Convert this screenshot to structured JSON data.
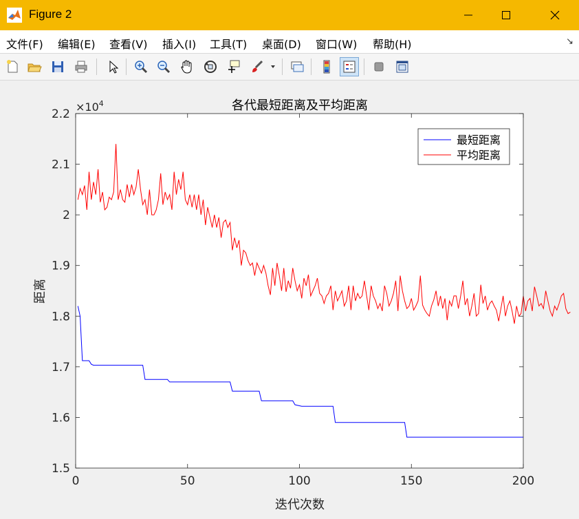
{
  "window": {
    "title": "Figure 2",
    "colors": {
      "titlebar": "#f5b800"
    }
  },
  "window_controls": {
    "minimize": "minimize-icon",
    "maximize": "maximize-icon",
    "close": "close-icon"
  },
  "menubar": {
    "items": [
      "文件(F)",
      "编辑(E)",
      "查看(V)",
      "插入(I)",
      "工具(T)",
      "桌面(D)",
      "窗口(W)",
      "帮助(H)"
    ],
    "dock_arrow": "↘"
  },
  "toolbar": {
    "buttons": [
      "new-figure-icon",
      "open-file-icon",
      "save-icon",
      "print-icon",
      "select-arrow-icon",
      "zoom-in-icon",
      "zoom-out-icon",
      "pan-hand-icon",
      "rotate-3d-icon",
      "data-cursor-icon",
      "brush-icon",
      "brush-dropdown-icon",
      "link-plot-icon",
      "insert-colorbar-icon",
      "insert-legend-icon",
      "hide-plot-tools-icon",
      "show-plot-tools-icon"
    ]
  },
  "chart_data": {
    "type": "line",
    "title": "各代最短距离及平均距离",
    "xlabel": "迭代次数",
    "ylabel": "距离",
    "exponent_label": "×10",
    "exponent_power": "4",
    "xlim": [
      0,
      200
    ],
    "ylim": [
      1.5,
      2.2
    ],
    "xticks": [
      0,
      50,
      100,
      150,
      200
    ],
    "xtick_labels": [
      "0",
      "50",
      "100",
      "150",
      "200"
    ],
    "yticks": [
      1.5,
      1.6,
      1.7,
      1.8,
      1.9,
      2.0,
      2.1,
      2.2
    ],
    "ytick_labels": [
      "1.5",
      "1.6",
      "1.7",
      "1.8",
      "1.9",
      "2",
      "2.1",
      "2.2"
    ],
    "grid": false,
    "legend": "top-right",
    "series": [
      {
        "name": "最短距离",
        "color": "#0000ff",
        "step_points": [
          [
            1,
            1.82
          ],
          [
            2,
            1.8
          ],
          [
            3,
            1.712
          ],
          [
            6,
            1.712
          ],
          [
            7,
            1.705
          ],
          [
            8,
            1.703
          ],
          [
            30,
            1.703
          ],
          [
            31,
            1.675
          ],
          [
            41,
            1.675
          ],
          [
            42,
            1.67
          ],
          [
            69,
            1.67
          ],
          [
            70,
            1.652
          ],
          [
            82,
            1.652
          ],
          [
            83,
            1.633
          ],
          [
            97,
            1.633
          ],
          [
            98,
            1.625
          ],
          [
            101,
            1.622
          ],
          [
            115,
            1.622
          ],
          [
            116,
            1.59
          ],
          [
            147,
            1.59
          ],
          [
            148,
            1.561
          ],
          [
            200,
            1.561
          ]
        ]
      },
      {
        "name": "平均距离",
        "color": "#ff0000",
        "values": [
          2.03,
          2.052,
          2.04,
          2.058,
          2.01,
          2.085,
          2.03,
          2.065,
          2.04,
          2.09,
          2.025,
          2.045,
          2.01,
          2.015,
          2.035,
          2.03,
          2.045,
          2.14,
          2.03,
          2.05,
          2.03,
          2.025,
          2.06,
          2.035,
          2.06,
          2.04,
          2.055,
          2.09,
          2.05,
          2.02,
          2.03,
          2.0,
          2.05,
          2.0,
          2.0,
          2.01,
          2.03,
          2.082,
          2.02,
          2.045,
          2.03,
          2.04,
          2.01,
          2.085,
          2.04,
          2.07,
          2.05,
          2.085,
          2.03,
          2.02,
          2.04,
          2.015,
          2.04,
          2.01,
          2.04,
          2.0,
          2.03,
          1.98,
          2.015,
          1.995,
          1.975,
          2.0,
          1.975,
          1.995,
          1.955,
          1.985,
          1.99,
          1.975,
          1.985,
          1.93,
          1.955,
          1.935,
          1.95,
          1.9,
          1.93,
          1.925,
          1.91,
          1.9,
          1.905,
          1.88,
          1.905,
          1.895,
          1.885,
          1.9,
          1.885,
          1.86,
          1.842,
          1.895,
          1.86,
          1.905,
          1.88,
          1.85,
          1.895,
          1.848,
          1.87,
          1.855,
          1.895,
          1.87,
          1.85,
          1.862,
          1.835,
          1.875,
          1.86,
          1.882,
          1.84,
          1.85,
          1.86,
          1.875,
          1.845,
          1.84,
          1.825,
          1.84,
          1.845,
          1.86,
          1.812,
          1.85,
          1.83,
          1.84,
          1.85,
          1.82,
          1.83,
          1.86,
          1.812,
          1.86,
          1.83,
          1.845,
          1.835,
          1.84,
          1.87,
          1.84,
          1.812,
          1.86,
          1.84,
          1.83,
          1.815,
          1.825,
          1.81,
          1.86,
          1.845,
          1.82,
          1.83,
          1.845,
          1.87,
          1.81,
          1.88,
          1.85,
          1.83,
          1.815,
          1.82,
          1.835,
          1.812,
          1.82,
          1.83,
          1.88,
          1.822,
          1.812,
          1.805,
          1.8,
          1.82,
          1.832,
          1.85,
          1.82,
          1.84,
          1.815,
          1.835,
          1.792,
          1.83,
          1.82,
          1.84,
          1.84,
          1.815,
          1.84,
          1.87,
          1.822,
          1.835,
          1.8,
          1.82,
          1.845,
          1.8,
          1.805,
          1.862,
          1.825,
          1.84,
          1.812,
          1.825,
          1.83,
          1.82,
          1.812,
          1.79,
          1.815,
          1.84,
          1.8,
          1.82,
          1.83,
          1.81,
          1.785,
          1.82,
          1.8,
          1.805,
          1.84,
          1.81,
          1.83,
          1.835,
          1.81,
          1.858,
          1.84,
          1.82,
          1.825,
          1.815,
          1.85,
          1.83,
          1.81,
          1.8,
          1.82,
          1.812,
          1.825,
          1.84,
          1.845,
          1.815,
          1.805,
          1.808
        ]
      }
    ]
  }
}
